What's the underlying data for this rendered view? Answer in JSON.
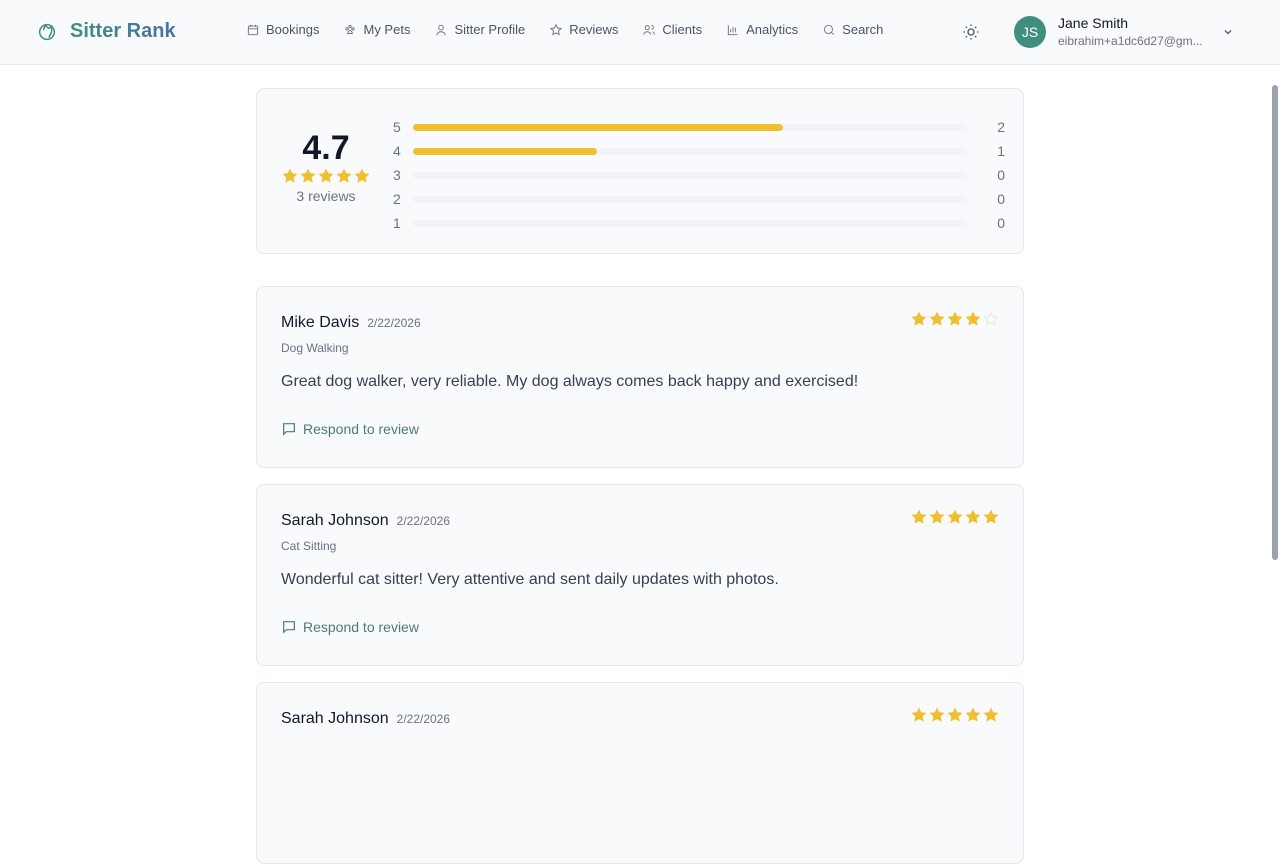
{
  "app": {
    "title": "Sitter Rank"
  },
  "nav": [
    {
      "label": "Bookings",
      "icon": "calendar-icon"
    },
    {
      "label": "My Pets",
      "icon": "paw-icon"
    },
    {
      "label": "Sitter Profile",
      "icon": "user-icon"
    },
    {
      "label": "Reviews",
      "icon": "star-icon"
    },
    {
      "label": "Clients",
      "icon": "users-icon"
    },
    {
      "label": "Analytics",
      "icon": "bar-chart-icon"
    },
    {
      "label": "Search",
      "icon": "search-icon"
    }
  ],
  "user": {
    "initials": "JS",
    "name": "Jane Smith",
    "email": "eibrahim+a1dc6d27@gm..."
  },
  "summary": {
    "average": "4.7",
    "stars": 5,
    "count_label": "3 reviews",
    "distribution": [
      {
        "rating": "5",
        "count": "2",
        "fraction": 0.667
      },
      {
        "rating": "4",
        "count": "1",
        "fraction": 0.333
      },
      {
        "rating": "3",
        "count": "0",
        "fraction": 0
      },
      {
        "rating": "2",
        "count": "0",
        "fraction": 0
      },
      {
        "rating": "1",
        "count": "0",
        "fraction": 0
      }
    ]
  },
  "reviews": [
    {
      "name": "Mike Davis",
      "date": "2/22/2026",
      "service": "Dog Walking",
      "text": "Great dog walker, very reliable. My dog always comes back happy and exercised!",
      "rating": 4,
      "respond": "Respond to review"
    },
    {
      "name": "Sarah Johnson",
      "date": "2/22/2026",
      "service": "Cat Sitting",
      "text": "Wonderful cat sitter! Very attentive and sent daily updates with photos.",
      "rating": 5,
      "respond": "Respond to review"
    },
    {
      "name": "Sarah Johnson",
      "date": "2/22/2026",
      "service": "",
      "text": "",
      "rating": 5,
      "respond": ""
    }
  ],
  "colors": {
    "star": "#f0bf2f",
    "accent": "#3f8f7f"
  }
}
